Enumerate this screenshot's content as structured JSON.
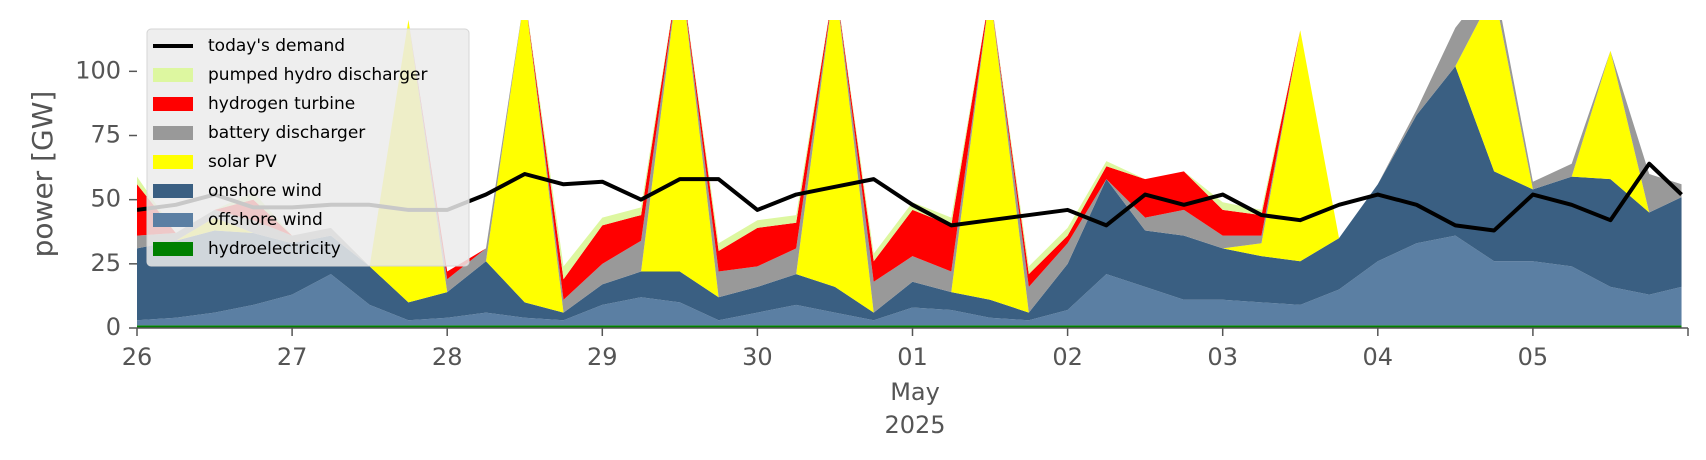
{
  "chart_data": {
    "type": "area",
    "ylabel": "power [GW]",
    "ylim": [
      0,
      120
    ],
    "yticks": [
      0,
      25,
      50,
      75,
      100
    ],
    "x_start": "2025-04-26",
    "x_end": "2025-05-05",
    "xticks": [
      "26",
      "27",
      "28",
      "29",
      "30",
      "01",
      "02",
      "03",
      "04",
      "05"
    ],
    "xaxis_month": "May",
    "xaxis_year": "2025",
    "legend_location": "upper-left",
    "grid": false,
    "x": [
      "2025-04-26 00:00",
      "2025-04-26 06:00",
      "2025-04-26 12:00",
      "2025-04-26 18:00",
      "2025-04-27 00:00",
      "2025-04-27 06:00",
      "2025-04-27 12:00",
      "2025-04-27 18:00",
      "2025-04-28 00:00",
      "2025-04-28 06:00",
      "2025-04-28 12:00",
      "2025-04-28 18:00",
      "2025-04-29 00:00",
      "2025-04-29 06:00",
      "2025-04-29 12:00",
      "2025-04-29 18:00",
      "2025-04-30 00:00",
      "2025-04-30 06:00",
      "2025-04-30 12:00",
      "2025-04-30 18:00",
      "2025-05-01 00:00",
      "2025-05-01 06:00",
      "2025-05-01 12:00",
      "2025-05-01 18:00",
      "2025-05-02 00:00",
      "2025-05-02 06:00",
      "2025-05-02 12:00",
      "2025-05-02 18:00",
      "2025-05-03 00:00",
      "2025-05-03 06:00",
      "2025-05-03 12:00",
      "2025-05-03 18:00",
      "2025-05-04 00:00",
      "2025-05-04 06:00",
      "2025-05-04 12:00",
      "2025-05-04 18:00",
      "2025-05-05 00:00",
      "2025-05-05 06:00",
      "2025-05-05 12:00",
      "2025-05-05 18:00",
      "2025-05-05 23:00"
    ],
    "stack_series": [
      {
        "name": "hydroelectricity",
        "color": "#008000",
        "values": [
          1,
          1,
          1,
          1,
          1,
          1,
          1,
          1,
          1,
          1,
          1,
          1,
          1,
          1,
          1,
          1,
          1,
          1,
          1,
          1,
          1,
          1,
          1,
          1,
          1,
          1,
          1,
          1,
          1,
          1,
          1,
          1,
          1,
          1,
          1,
          1,
          1,
          1,
          1,
          1,
          1
        ]
      },
      {
        "name": "offshore wind",
        "color": "#5b7fa3",
        "values": [
          2,
          3,
          5,
          8,
          12,
          20,
          8,
          2,
          3,
          5,
          3,
          2,
          8,
          11,
          9,
          2,
          5,
          8,
          5,
          2,
          7,
          6,
          3,
          2,
          6,
          20,
          15,
          10,
          10,
          9,
          8,
          14,
          25,
          32,
          35,
          25,
          25,
          23,
          15,
          12,
          15
        ]
      },
      {
        "name": "onshore wind",
        "color": "#3a5f82",
        "values": [
          28,
          30,
          32,
          28,
          20,
          15,
          15,
          7,
          10,
          20,
          6,
          3,
          8,
          10,
          12,
          9,
          10,
          12,
          10,
          3,
          10,
          7,
          7,
          3,
          18,
          37,
          22,
          25,
          20,
          18,
          17,
          20,
          30,
          50,
          66,
          35,
          28,
          35,
          42,
          32,
          35
        ]
      },
      {
        "name": "solar PV",
        "color": "#ffff00",
        "values": [
          0,
          0,
          5,
          0,
          0,
          0,
          0,
          110,
          0,
          0,
          120,
          0,
          0,
          0,
          120,
          0,
          0,
          0,
          120,
          0,
          0,
          0,
          120,
          0,
          0,
          0,
          0,
          0,
          0,
          5,
          90,
          0,
          0,
          0,
          0,
          70,
          0,
          0,
          50,
          0,
          0
        ]
      },
      {
        "name": "battery discharger",
        "color": "#999999",
        "values": [
          5,
          3,
          3,
          5,
          3,
          3,
          0,
          0,
          5,
          5,
          0,
          5,
          8,
          12,
          0,
          10,
          8,
          10,
          0,
          12,
          10,
          8,
          0,
          10,
          8,
          0,
          5,
          10,
          5,
          3,
          0,
          0,
          0,
          2,
          15,
          5,
          3,
          5,
          0,
          15,
          5
        ]
      },
      {
        "name": "hydrogen turbine",
        "color": "#ff0000",
        "values": [
          20,
          0,
          0,
          8,
          0,
          0,
          0,
          0,
          3,
          0,
          0,
          8,
          15,
          10,
          0,
          8,
          15,
          10,
          0,
          8,
          18,
          18,
          0,
          5,
          3,
          5,
          15,
          15,
          10,
          8,
          0,
          0,
          0,
          0,
          0,
          0,
          0,
          0,
          0,
          0,
          0
        ]
      },
      {
        "name": "pumped hydro discharger",
        "color": "#ddf7a0",
        "values": [
          3,
          0,
          0,
          3,
          0,
          0,
          0,
          0,
          0,
          0,
          0,
          5,
          3,
          3,
          0,
          3,
          3,
          3,
          0,
          3,
          3,
          3,
          0,
          3,
          3,
          2,
          0,
          0,
          3,
          2,
          0,
          0,
          0,
          0,
          0,
          0,
          0,
          0,
          0,
          0,
          0
        ]
      }
    ],
    "line_series": {
      "name": "today's demand",
      "color": "#000000",
      "values": [
        46,
        48,
        52,
        47,
        47,
        48,
        48,
        46,
        46,
        52,
        60,
        56,
        57,
        50,
        58,
        58,
        46,
        52,
        55,
        58,
        48,
        40,
        42,
        44,
        46,
        40,
        52,
        48,
        52,
        44,
        42,
        48,
        52,
        48,
        40,
        38,
        52,
        48,
        42,
        64,
        52
      ]
    },
    "legend": [
      {
        "label": "today's demand",
        "color": "#000000",
        "kind": "line"
      },
      {
        "label": "pumped hydro discharger",
        "color": "#ddf7a0",
        "kind": "patch"
      },
      {
        "label": "hydrogen turbine",
        "color": "#ff0000",
        "kind": "patch"
      },
      {
        "label": "battery discharger",
        "color": "#999999",
        "kind": "patch"
      },
      {
        "label": "solar PV",
        "color": "#ffff00",
        "kind": "patch"
      },
      {
        "label": "onshore wind",
        "color": "#3a5f82",
        "kind": "patch"
      },
      {
        "label": "offshore wind",
        "color": "#5b7fa3",
        "kind": "patch"
      },
      {
        "label": "hydroelectricity",
        "color": "#008000",
        "kind": "patch"
      }
    ]
  }
}
